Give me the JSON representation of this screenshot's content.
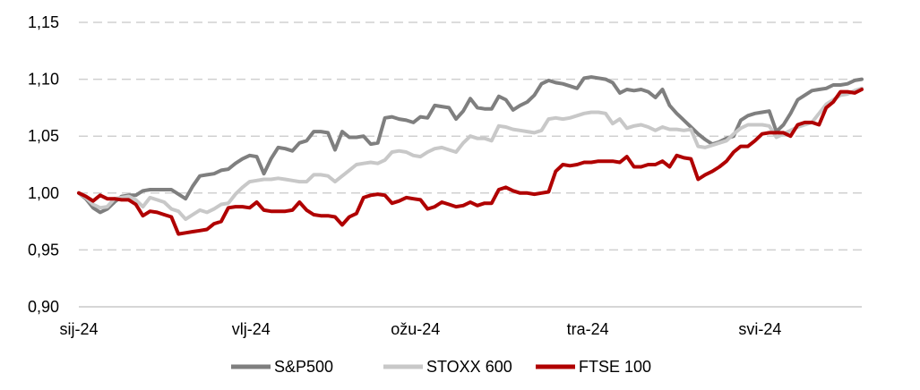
{
  "chart_data": {
    "type": "line",
    "title": "",
    "xlabel": "",
    "ylabel": "",
    "ylim": [
      0.9,
      1.15
    ],
    "yticks": [
      "0,90",
      "0,95",
      "1,00",
      "1,05",
      "1,10",
      "1,15"
    ],
    "ytick_values": [
      0.9,
      0.95,
      1.0,
      1.05,
      1.1,
      1.15
    ],
    "grid": "horizontal-dashed",
    "legend_position": "bottom",
    "x_range": [
      0,
      100
    ],
    "x_ticks": [
      {
        "label": "sij-24",
        "x": 0
      },
      {
        "label": "vlj-24",
        "x": 22
      },
      {
        "label": "ožu-24",
        "x": 43
      },
      {
        "label": "tra-24",
        "x": 65
      },
      {
        "label": "svi-24",
        "x": 87
      }
    ],
    "series": [
      {
        "name": "S&P500",
        "color": "#7f7f7f",
        "values": [
          1.0,
          0.995,
          0.987,
          0.983,
          0.986,
          0.992,
          0.997,
          0.998,
          0.998,
          1.002,
          1.003,
          1.003,
          1.003,
          1.003,
          0.999,
          0.995,
          1.006,
          1.015,
          1.016,
          1.017,
          1.02,
          1.021,
          1.026,
          1.03,
          1.033,
          1.032,
          1.017,
          1.03,
          1.04,
          1.039,
          1.037,
          1.044,
          1.046,
          1.054,
          1.054,
          1.053,
          1.038,
          1.054,
          1.049,
          1.049,
          1.05,
          1.043,
          1.044,
          1.066,
          1.067,
          1.065,
          1.064,
          1.062,
          1.067,
          1.066,
          1.077,
          1.076,
          1.075,
          1.065,
          1.072,
          1.083,
          1.075,
          1.074,
          1.074,
          1.085,
          1.082,
          1.073,
          1.077,
          1.08,
          1.086,
          1.096,
          1.099,
          1.097,
          1.096,
          1.094,
          1.092,
          1.101,
          1.102,
          1.101,
          1.1,
          1.097,
          1.088,
          1.091,
          1.09,
          1.091,
          1.089,
          1.084,
          1.091,
          1.077,
          1.07,
          1.064,
          1.058,
          1.052,
          1.047,
          1.043,
          1.045,
          1.048,
          1.05,
          1.064,
          1.068,
          1.07,
          1.071,
          1.072,
          1.054,
          1.06,
          1.07,
          1.082,
          1.086,
          1.09,
          1.091,
          1.092,
          1.095,
          1.095,
          1.096,
          1.099,
          1.1
        ]
      },
      {
        "name": "STOXX 600",
        "color": "#c8c8c8",
        "values": [
          1.0,
          0.996,
          0.99,
          0.987,
          0.988,
          0.995,
          0.996,
          0.997,
          0.994,
          0.988,
          0.996,
          0.994,
          0.992,
          0.986,
          0.984,
          0.977,
          0.981,
          0.985,
          0.983,
          0.986,
          0.99,
          0.991,
          0.999,
          1.005,
          1.01,
          1.011,
          1.012,
          1.012,
          1.013,
          1.012,
          1.011,
          1.01,
          1.01,
          1.016,
          1.016,
          1.015,
          1.01,
          1.015,
          1.02,
          1.025,
          1.026,
          1.027,
          1.026,
          1.029,
          1.036,
          1.037,
          1.036,
          1.033,
          1.032,
          1.036,
          1.039,
          1.04,
          1.038,
          1.036,
          1.044,
          1.05,
          1.048,
          1.048,
          1.046,
          1.059,
          1.058,
          1.056,
          1.055,
          1.054,
          1.053,
          1.055,
          1.065,
          1.066,
          1.065,
          1.066,
          1.068,
          1.07,
          1.071,
          1.071,
          1.07,
          1.061,
          1.065,
          1.057,
          1.059,
          1.06,
          1.058,
          1.055,
          1.058,
          1.056,
          1.056,
          1.055,
          1.056,
          1.041,
          1.04,
          1.042,
          1.044,
          1.046,
          1.052,
          1.057,
          1.06,
          1.06,
          1.06,
          1.059,
          1.049,
          1.052,
          1.055,
          1.058,
          1.06,
          1.062,
          1.07,
          1.078,
          1.082,
          1.086,
          1.087,
          1.09,
          1.092
        ]
      },
      {
        "name": "FTSE 100",
        "color": "#b00000",
        "values": [
          1.0,
          0.997,
          0.993,
          0.998,
          0.995,
          0.995,
          0.994,
          0.994,
          0.99,
          0.98,
          0.984,
          0.983,
          0.981,
          0.979,
          0.964,
          0.965,
          0.966,
          0.967,
          0.968,
          0.973,
          0.975,
          0.987,
          0.988,
          0.988,
          0.987,
          0.992,
          0.985,
          0.984,
          0.984,
          0.984,
          0.985,
          0.992,
          0.985,
          0.981,
          0.98,
          0.98,
          0.979,
          0.972,
          0.979,
          0.982,
          0.996,
          0.998,
          0.999,
          0.998,
          0.991,
          0.993,
          0.996,
          0.995,
          0.994,
          0.986,
          0.988,
          0.992,
          0.99,
          0.988,
          0.989,
          0.992,
          0.989,
          0.991,
          0.991,
          1.003,
          1.005,
          1.002,
          1.0,
          1.0,
          0.999,
          1.0,
          1.001,
          1.019,
          1.025,
          1.024,
          1.025,
          1.027,
          1.027,
          1.028,
          1.028,
          1.028,
          1.027,
          1.032,
          1.023,
          1.023,
          1.025,
          1.025,
          1.028,
          1.023,
          1.033,
          1.031,
          1.03,
          1.012,
          1.016,
          1.019,
          1.023,
          1.028,
          1.036,
          1.041,
          1.041,
          1.046,
          1.052,
          1.053,
          1.053,
          1.053,
          1.05,
          1.06,
          1.062,
          1.062,
          1.06,
          1.075,
          1.08,
          1.089,
          1.089,
          1.088,
          1.091
        ]
      }
    ]
  }
}
